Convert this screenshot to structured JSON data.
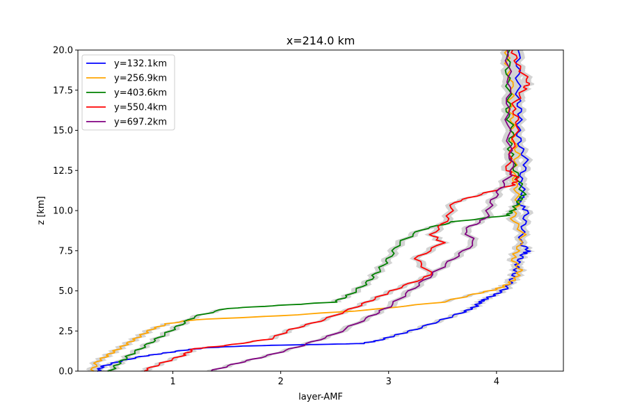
{
  "chart_data": {
    "type": "line",
    "title": "x=214.0 km",
    "xlabel": "layer-AMF",
    "ylabel": "z [km]",
    "xlim": [
      0.12,
      4.62
    ],
    "ylim": [
      0,
      20
    ],
    "xticks": [
      1,
      2,
      3,
      4
    ],
    "xtick_labels": [
      "1",
      "2",
      "3",
      "4"
    ],
    "yticks": [
      0,
      2.5,
      5,
      7.5,
      10,
      12.5,
      15,
      17.5,
      20
    ],
    "ytick_labels": [
      "0.0",
      "2.5",
      "5.0",
      "7.5",
      "10.0",
      "12.5",
      "15.0",
      "17.5",
      "20.0"
    ],
    "grid": false,
    "legend_position": "upper-left",
    "uncertainty_band_color": "#d3d3d3",
    "series": [
      {
        "name": "y=132.1km",
        "color": "#0000ff",
        "x": [
          0.3,
          0.35,
          0.5,
          0.7,
          0.9,
          1.1,
          1.3,
          1.6,
          2.0,
          2.5,
          2.75,
          2.9,
          3.05,
          3.25,
          3.5,
          3.7,
          3.8,
          3.85,
          3.9,
          4.0,
          4.1,
          4.15,
          4.18,
          4.2,
          4.25,
          4.3,
          4.22,
          4.25,
          4.28,
          4.2,
          4.25,
          4.22,
          4.28,
          4.22,
          4.2,
          4.22,
          4.2,
          4.2,
          4.2
        ],
        "y": [
          0,
          0.3,
          0.6,
          0.9,
          1.1,
          1.3,
          1.45,
          1.55,
          1.62,
          1.68,
          1.72,
          1.9,
          2.2,
          2.6,
          3.2,
          3.7,
          4.0,
          4.3,
          4.5,
          4.8,
          5.2,
          5.8,
          6.3,
          6.8,
          7.3,
          7.5,
          8.0,
          9.0,
          10.0,
          10.5,
          11.0,
          12.0,
          13.0,
          14.0,
          15.0,
          16.0,
          17.0,
          18.5,
          20.0
        ]
      },
      {
        "name": "y=256.9km",
        "color": "#ffa500",
        "x": [
          0.25,
          0.3,
          0.4,
          0.5,
          0.6,
          0.7,
          0.8,
          0.95,
          1.2,
          2.0,
          2.8,
          3.5,
          3.8,
          4.0,
          4.1,
          4.18,
          4.22,
          4.15,
          4.2,
          4.25,
          4.15,
          4.2,
          4.18,
          4.15,
          4.2,
          4.15,
          4.15,
          4.12,
          4.15,
          4.1,
          4.1
        ],
        "y": [
          0,
          0.6,
          1.0,
          1.4,
          1.8,
          2.2,
          2.6,
          2.95,
          3.2,
          3.45,
          3.8,
          4.3,
          4.8,
          5.1,
          5.4,
          5.8,
          6.3,
          7.0,
          7.6,
          8.5,
          9.5,
          10.5,
          11.5,
          12.5,
          13.5,
          14.5,
          15.5,
          16.5,
          17.5,
          19.0,
          20.0
        ]
      },
      {
        "name": "y=403.6km",
        "color": "#008000",
        "x": [
          0.42,
          0.5,
          0.6,
          0.75,
          0.9,
          1.05,
          1.2,
          1.5,
          2.0,
          2.5,
          2.65,
          2.8,
          2.9,
          3.0,
          3.1,
          3.3,
          3.6,
          4.1,
          4.15,
          4.2,
          4.25,
          4.2,
          4.15,
          4.12,
          4.15,
          4.1,
          4.12,
          4.1,
          4.12
        ],
        "y": [
          0,
          0.5,
          1.0,
          1.6,
          2.2,
          2.8,
          3.4,
          3.9,
          4.1,
          4.3,
          4.8,
          5.5,
          6.2,
          7.0,
          8.0,
          8.8,
          9.3,
          9.7,
          10.0,
          10.5,
          11.0,
          12.0,
          13.0,
          14.0,
          15.0,
          16.0,
          17.0,
          18.5,
          20.0
        ]
      },
      {
        "name": "y=550.4km",
        "color": "#ff0000",
        "x": [
          0.72,
          0.9,
          1.1,
          1.2,
          1.5,
          1.9,
          2.1,
          2.4,
          2.7,
          2.9,
          3.1,
          3.4,
          3.25,
          3.5,
          3.4,
          3.55,
          3.6,
          3.9,
          4.15,
          4.2,
          4.1,
          4.15,
          4.2,
          4.15,
          4.25,
          4.3,
          4.2,
          4.15
        ],
        "y": [
          0,
          0.5,
          1.0,
          1.4,
          1.6,
          2.0,
          2.6,
          3.2,
          4.0,
          4.6,
          5.2,
          6.0,
          7.0,
          8.0,
          8.5,
          9.5,
          10.5,
          11.1,
          11.6,
          12.0,
          12.5,
          14.0,
          15.5,
          16.5,
          17.5,
          18.0,
          19.0,
          20.0
        ]
      },
      {
        "name": "y=697.2km",
        "color": "#800080",
        "x": [
          1.35,
          1.6,
          1.9,
          2.2,
          2.5,
          2.8,
          3.0,
          3.2,
          3.4,
          3.6,
          3.8,
          3.7,
          3.9,
          3.95,
          4.05,
          4.15,
          4.12,
          4.1,
          4.12,
          4.1
        ],
        "y": [
          0,
          0.5,
          1.0,
          1.6,
          2.3,
          3.3,
          4.0,
          5.0,
          6.0,
          7.0,
          8.0,
          8.8,
          9.5,
          10.5,
          11.5,
          12.5,
          14.0,
          16.0,
          18.0,
          20.0
        ]
      }
    ]
  }
}
